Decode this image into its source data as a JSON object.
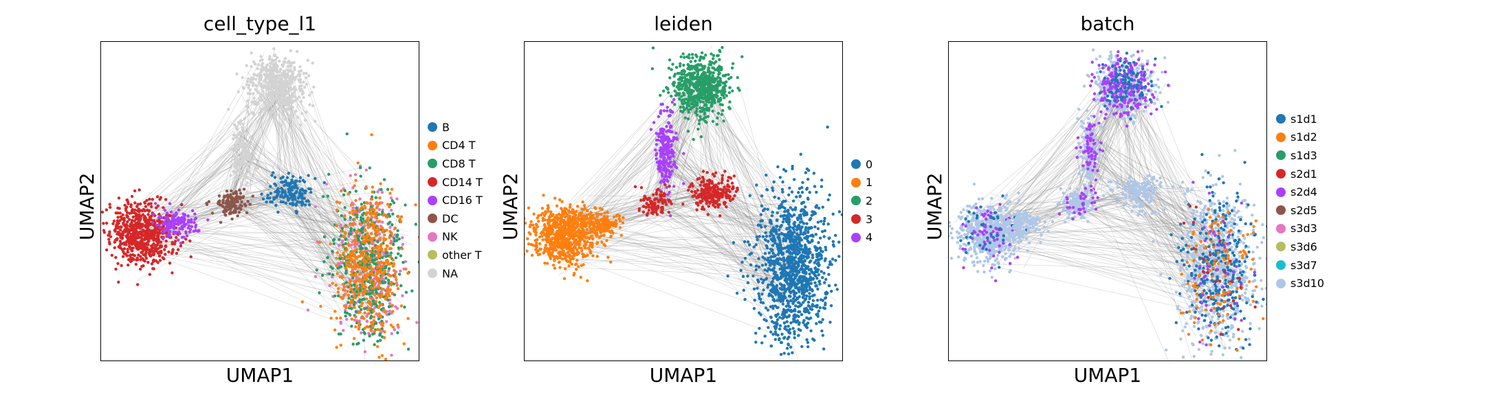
{
  "chart_data": [
    {
      "type": "scatter",
      "title": "cell_type_l1",
      "xlabel": "UMAP1",
      "ylabel": "UMAP2",
      "grid": false,
      "legend_placement": "right",
      "edges_color": "#808080",
      "categories": [
        {
          "name": "B",
          "color": "#1f77b4"
        },
        {
          "name": "CD4 T",
          "color": "#ff7f0e"
        },
        {
          "name": "CD8 T",
          "color": "#279e68"
        },
        {
          "name": "CD14 T",
          "color": "#d62728"
        },
        {
          "name": "CD16 T",
          "color": "#aa40fc"
        },
        {
          "name": "DC",
          "color": "#8c564b"
        },
        {
          "name": "NK",
          "color": "#e377c2"
        },
        {
          "name": "other T",
          "color": "#b5bd61"
        },
        {
          "name": "NA",
          "color": "#d3d3d3"
        }
      ]
    },
    {
      "type": "scatter",
      "title": "leiden",
      "xlabel": "UMAP1",
      "ylabel": "UMAP2",
      "grid": false,
      "legend_placement": "right",
      "edges_color": "#808080",
      "categories": [
        {
          "name": "0",
          "color": "#1f77b4"
        },
        {
          "name": "1",
          "color": "#ff7f0e"
        },
        {
          "name": "2",
          "color": "#279e68"
        },
        {
          "name": "3",
          "color": "#d62728"
        },
        {
          "name": "4",
          "color": "#aa40fc"
        }
      ]
    },
    {
      "type": "scatter",
      "title": "batch",
      "xlabel": "UMAP1",
      "ylabel": "UMAP2",
      "grid": false,
      "legend_placement": "right",
      "edges_color": "#808080",
      "categories": [
        {
          "name": "s1d1",
          "color": "#1f77b4"
        },
        {
          "name": "s1d2",
          "color": "#ff7f0e"
        },
        {
          "name": "s1d3",
          "color": "#279e68"
        },
        {
          "name": "s2d1",
          "color": "#d62728"
        },
        {
          "name": "s2d4",
          "color": "#aa40fc"
        },
        {
          "name": "s2d5",
          "color": "#8c564b"
        },
        {
          "name": "s3d3",
          "color": "#e377c2"
        },
        {
          "name": "s3d6",
          "color": "#b5bd61"
        },
        {
          "name": "s3d7",
          "color": "#17becf"
        },
        {
          "name": "s3d10",
          "color": "#aec7e8"
        }
      ]
    }
  ]
}
